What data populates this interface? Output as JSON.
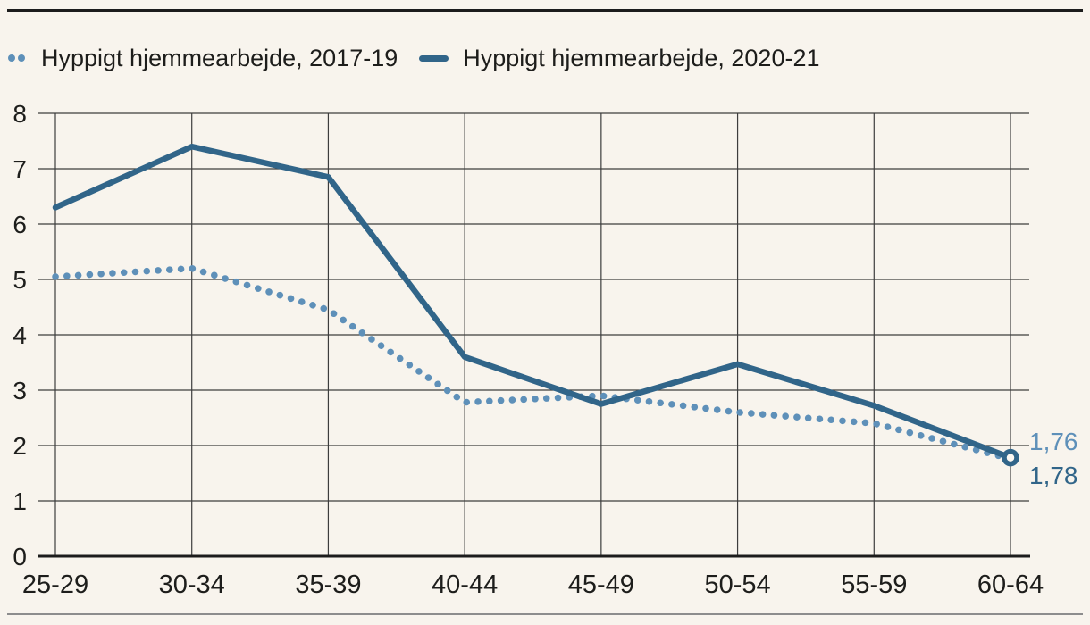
{
  "page": {
    "background": "#f8f4ed",
    "top_rule_color": "#1c1c1c",
    "bottom_rule_color": "#8d8d8d",
    "text_color": "#1d1d1b",
    "gridline_color": "#3d3d3d",
    "axis_color": "#1c1c1c"
  },
  "legend": [
    {
      "label": "Hyppigt hjemmearbejde, 2017-19",
      "style": "dotted",
      "color": "#5e90b9"
    },
    {
      "label": "Hyppigt hjemmearbejde, 2020-21",
      "style": "solid",
      "color": "#316589"
    }
  ],
  "chart_data": {
    "type": "line",
    "title": "",
    "xlabel": "",
    "ylabel": "",
    "categories": [
      "25-29",
      "30-34",
      "35-39",
      "40-44",
      "45-49",
      "50-54",
      "55-59",
      "60-64"
    ],
    "series": [
      {
        "name": "Hyppigt hjemmearbejde, 2017-19",
        "style": "dotted",
        "color": "#5e90b9",
        "values": [
          5.05,
          5.2,
          4.45,
          2.78,
          2.9,
          2.6,
          2.4,
          1.76
        ],
        "end_label": "1,76",
        "end_marker": "dot"
      },
      {
        "name": "Hyppigt hjemmearbejde, 2020-21",
        "style": "solid",
        "color": "#316589",
        "values": [
          6.3,
          7.4,
          6.85,
          3.6,
          2.75,
          3.47,
          2.72,
          1.78
        ],
        "end_label": "1,78",
        "end_marker": "open-circle"
      }
    ],
    "ylim": [
      0,
      8
    ],
    "yticks": [
      0,
      1,
      2,
      3,
      4,
      5,
      6,
      7,
      8
    ],
    "grid": true,
    "legend_position": "top-left"
  }
}
